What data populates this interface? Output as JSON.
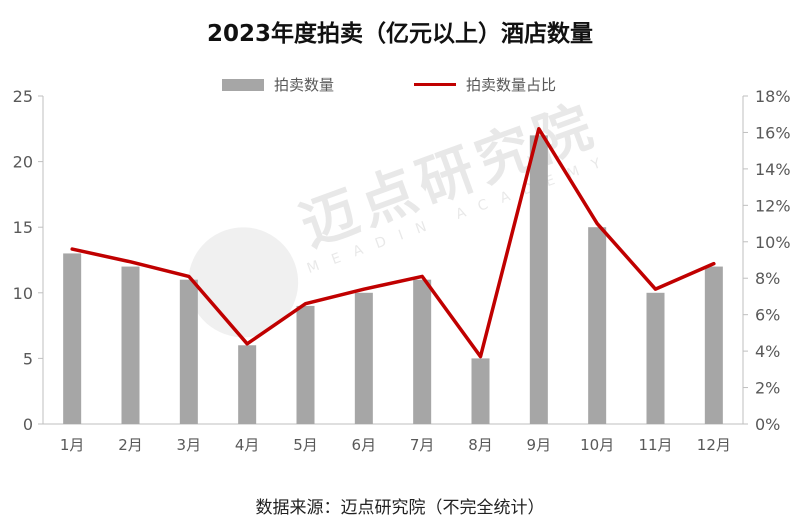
{
  "chart_data": {
    "type": "bar+line",
    "title": "2023年度拍卖（亿元以上）酒店数量",
    "categories": [
      "1月",
      "2月",
      "3月",
      "4月",
      "5月",
      "6月",
      "7月",
      "8月",
      "9月",
      "10月",
      "11月",
      "12月"
    ],
    "series": [
      {
        "name": "拍卖数量",
        "type": "bar",
        "axis": "left",
        "values": [
          13,
          12,
          11,
          6,
          9,
          10,
          11,
          5,
          22,
          15,
          10,
          12
        ]
      },
      {
        "name": "拍卖数量占比",
        "type": "line",
        "axis": "right",
        "values": [
          9.6,
          8.9,
          8.1,
          4.4,
          6.6,
          7.4,
          8.1,
          3.7,
          16.2,
          11.0,
          7.4,
          8.8
        ]
      }
    ],
    "left_axis": {
      "ylim": [
        0,
        25
      ],
      "ticks": [
        "0",
        "5",
        "10",
        "15",
        "20",
        "25"
      ]
    },
    "right_axis": {
      "ylim": [
        0,
        18
      ],
      "ticks": [
        "0%",
        "2%",
        "4%",
        "6%",
        "8%",
        "10%",
        "12%",
        "14%",
        "16%",
        "18%"
      ]
    },
    "legend_position": "top",
    "colors": {
      "bar": "#a6a6a6",
      "line": "#c00000"
    },
    "grid": false
  },
  "footer": {
    "source": "数据来源：迈点研究院（不完全统计）"
  },
  "watermark": {
    "main": "迈点研究院",
    "sub": "MEADIN ACADEMY"
  }
}
